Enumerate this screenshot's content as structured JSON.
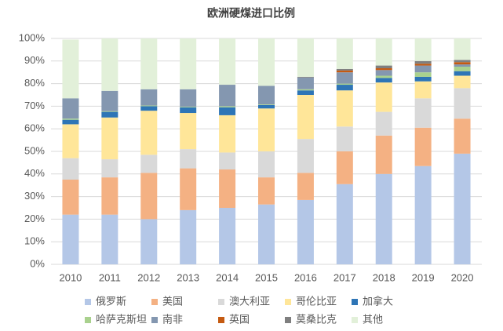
{
  "chart_data": {
    "type": "stacked_bar",
    "title": "欧洲硬煤进口比例",
    "categories": [
      "2010",
      "2011",
      "2012",
      "2013",
      "2014",
      "2015",
      "2016",
      "2017",
      "2018",
      "2019",
      "2020"
    ],
    "ylim": [
      0,
      100
    ],
    "yticks": [
      {
        "value": 0,
        "label": "0%"
      },
      {
        "value": 10,
        "label": "10%"
      },
      {
        "value": 20,
        "label": "20%"
      },
      {
        "value": 30,
        "label": "30%"
      },
      {
        "value": 40,
        "label": "40%"
      },
      {
        "value": 50,
        "label": "50%"
      },
      {
        "value": 60,
        "label": "60%"
      },
      {
        "value": 70,
        "label": "70%"
      },
      {
        "value": 80,
        "label": "80%"
      },
      {
        "value": 90,
        "label": "90%"
      },
      {
        "value": 100,
        "label": "100%"
      }
    ],
    "grid": true,
    "series": [
      {
        "name": "俄罗斯",
        "color": "#b4c7e7",
        "values": [
          22,
          22,
          20,
          24,
          25,
          26.5,
          28.5,
          35.5,
          40,
          43.5,
          49
        ]
      },
      {
        "name": "美国",
        "color": "#f4b183",
        "values": [
          15.5,
          16.5,
          20.5,
          18.5,
          17,
          12,
          12,
          14.5,
          17,
          17,
          15.5
        ]
      },
      {
        "name": "澳大利亚",
        "color": "#d9d9d9",
        "values": [
          9.5,
          8,
          8,
          8.5,
          7.5,
          11.5,
          15,
          11,
          10.5,
          13,
          13.5
        ]
      },
      {
        "name": "哥伦比亚",
        "color": "#ffe699",
        "values": [
          15,
          18.5,
          19.5,
          16,
          16.5,
          19,
          19.5,
          16,
          13,
          7.5,
          5.5
        ]
      },
      {
        "name": "加拿大",
        "color": "#2e75b6",
        "values": [
          2,
          2.5,
          2,
          2.5,
          3.5,
          1.5,
          2,
          2.5,
          2,
          2,
          2
        ]
      },
      {
        "name": "哈萨克斯坦",
        "color": "#a9d18e",
        "values": [
          0.5,
          0.3,
          0.3,
          0.3,
          0.5,
          0.3,
          0.5,
          0.5,
          1,
          2,
          2
        ]
      },
      {
        "name": "南非",
        "color": "#8497b0",
        "values": [
          9,
          9,
          7.2,
          7.7,
          9.5,
          8.2,
          5.2,
          5,
          2.5,
          3,
          1
        ]
      },
      {
        "name": "英国",
        "color": "#c55a11",
        "values": [
          0,
          0,
          0,
          0,
          0,
          0,
          0,
          0.8,
          0.8,
          0.8,
          1
        ]
      },
      {
        "name": "莫桑比克",
        "color": "#7f7f7f",
        "values": [
          0,
          0,
          0,
          0,
          0,
          0,
          0.3,
          0.7,
          1.2,
          1.2,
          1
        ]
      },
      {
        "name": "其他",
        "color": "#e2f0d9",
        "values": [
          26,
          23.2,
          22.5,
          22.5,
          20.5,
          21,
          17,
          13.5,
          12,
          10,
          9.5
        ]
      }
    ]
  }
}
